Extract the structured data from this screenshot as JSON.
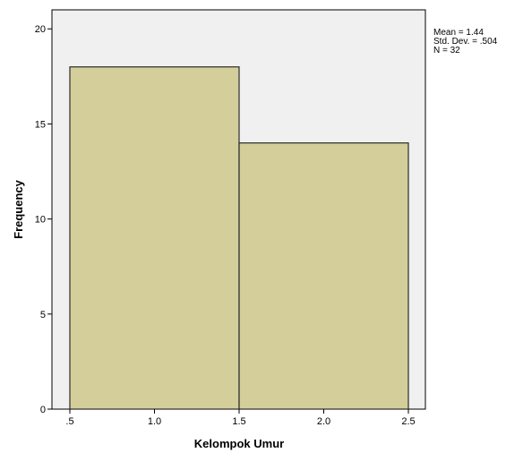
{
  "chart_data": {
    "type": "bar",
    "subtype": "histogram",
    "bins": [
      {
        "from": 0.5,
        "to": 1.5,
        "value": 18
      },
      {
        "from": 1.5,
        "to": 2.5,
        "value": 14
      }
    ],
    "xlabel": "Kelompok Umur",
    "ylabel": "Frequency",
    "xlim": [
      0.5,
      2.5
    ],
    "ylim": [
      0,
      21
    ],
    "x_ticks": [
      ".5",
      "1.0",
      "1.5",
      "2.0",
      "2.5"
    ],
    "x_tick_values": [
      0.5,
      1.0,
      1.5,
      2.0,
      2.5
    ],
    "y_ticks": [
      "0",
      "5",
      "10",
      "15",
      "20"
    ],
    "y_tick_values": [
      0,
      5,
      10,
      15,
      20
    ],
    "grid": false,
    "stats": {
      "mean": "Mean = 1.44",
      "std_dev": "Std. Dev. = .504",
      "n": "N = 32"
    },
    "colors": {
      "bar_fill": "#d3ce9a",
      "bar_stroke": "#2b2b2b",
      "plot_background": "#f0f0f0"
    }
  }
}
